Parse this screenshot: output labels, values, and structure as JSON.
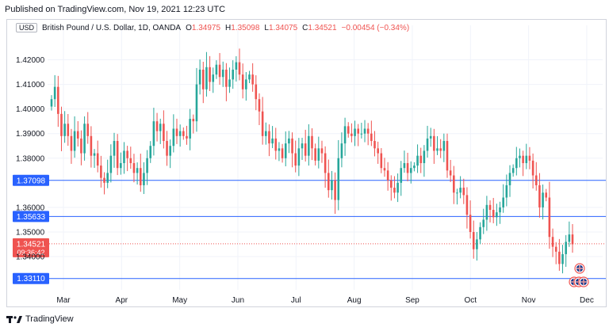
{
  "header": {
    "published": "Published on TradingView.com, Nov 19, 2021 12:23 UTC"
  },
  "legend": {
    "currency": "USD",
    "title": "British Pound / U.S. Dollar, 1D, OANDA",
    "o_label": "O",
    "o_value": "1.34975",
    "h_label": "H",
    "h_value": "1.35098",
    "l_label": "L",
    "l_value": "1.34075",
    "c_label": "C",
    "c_value": "1.34521",
    "change": "−0.00454 (−0.34%)"
  },
  "footer": {
    "brand": "TradingView"
  },
  "colors": {
    "up": "#26a69a",
    "down": "#ef5350",
    "level": "#2962ff",
    "grid": "#f0f3fa"
  },
  "chart_data": {
    "type": "candlestick",
    "title": "British Pound / U.S. Dollar, 1D, OANDA",
    "ylim": [
      1.3265,
      1.434
    ],
    "y_ticks": [
      "1.42000",
      "1.41000",
      "1.40000",
      "1.39000",
      "1.38000",
      "1.36000",
      "1.35000",
      "1.34000"
    ],
    "y_tick_values": [
      1.42,
      1.41,
      1.4,
      1.39,
      1.38,
      1.36,
      1.35,
      1.34
    ],
    "x_labels": [
      "Mar",
      "Apr",
      "May",
      "Jun",
      "Jul",
      "Aug",
      "Sep",
      "Oct",
      "Nov",
      "Dec"
    ],
    "levels": [
      {
        "label": "1.37098",
        "value": 1.37098
      },
      {
        "label": "1.35633",
        "value": 1.35633
      },
      {
        "label": "1.33110",
        "value": 1.3311
      }
    ],
    "last_price": {
      "label": "1.34521",
      "value": 1.34521,
      "countdown": "09:36:42"
    },
    "closes": [
      1.404,
      1.409,
      1.398,
      1.389,
      1.394,
      1.389,
      1.383,
      1.391,
      1.388,
      1.382,
      1.394,
      1.389,
      1.381,
      1.382,
      1.377,
      1.372,
      1.37,
      1.374,
      1.381,
      1.387,
      1.376,
      1.378,
      1.383,
      1.38,
      1.378,
      1.374,
      1.376,
      1.369,
      1.374,
      1.38,
      1.385,
      1.395,
      1.391,
      1.394,
      1.387,
      1.381,
      1.385,
      1.392,
      1.389,
      1.391,
      1.389,
      1.388,
      1.396,
      1.395,
      1.41,
      1.416,
      1.408,
      1.417,
      1.411,
      1.414,
      1.418,
      1.413,
      1.416,
      1.409,
      1.412,
      1.416,
      1.419,
      1.414,
      1.408,
      1.412,
      1.414,
      1.41,
      1.404,
      1.399,
      1.389,
      1.391,
      1.386,
      1.388,
      1.383,
      1.384,
      1.38,
      1.386,
      1.388,
      1.382,
      1.377,
      1.384,
      1.386,
      1.381,
      1.389,
      1.384,
      1.379,
      1.384,
      1.382,
      1.374,
      1.367,
      1.371,
      1.363,
      1.38,
      1.386,
      1.393,
      1.39,
      1.389,
      1.392,
      1.39,
      1.39,
      1.392,
      1.39,
      1.387,
      1.384,
      1.382,
      1.376,
      1.375,
      1.371,
      1.368,
      1.366,
      1.37,
      1.376,
      1.378,
      1.374,
      1.376,
      1.377,
      1.381,
      1.378,
      1.383,
      1.388,
      1.389,
      1.383,
      1.384,
      1.383,
      1.387,
      1.375,
      1.373,
      1.366,
      1.366,
      1.368,
      1.365,
      1.357,
      1.35,
      1.343,
      1.347,
      1.352,
      1.355,
      1.361,
      1.359,
      1.356,
      1.358,
      1.36,
      1.364,
      1.369,
      1.374,
      1.376,
      1.38,
      1.381,
      1.378,
      1.381,
      1.379,
      1.373,
      1.369,
      1.36,
      1.366,
      1.364,
      1.348,
      1.344,
      1.342,
      1.337,
      1.341,
      1.346,
      1.349,
      1.345
    ]
  }
}
